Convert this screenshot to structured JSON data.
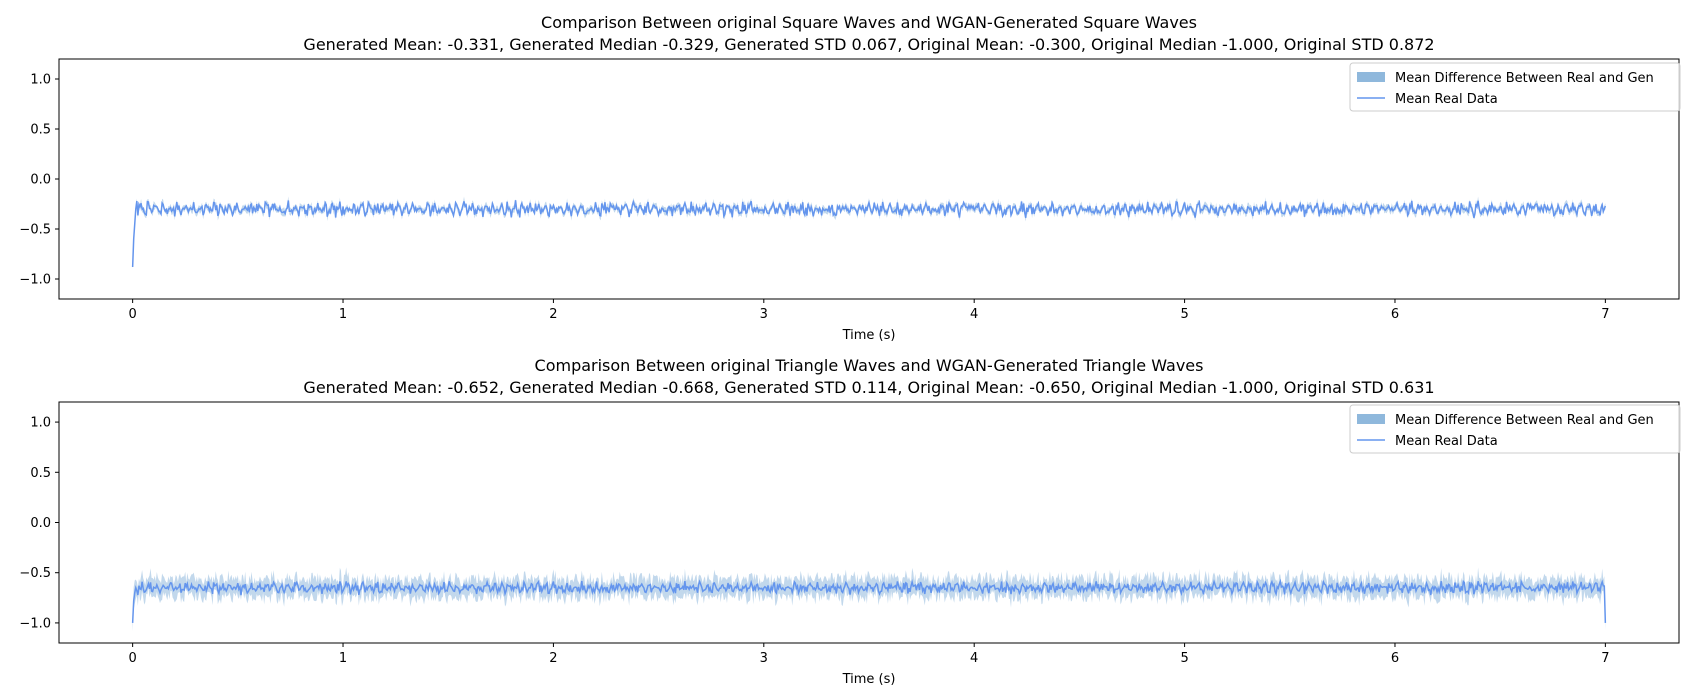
{
  "colors": {
    "line": "#6495ED",
    "band": "#8fb8dc",
    "frame": "#000000",
    "legend_border": "#cccccc"
  },
  "chart_data": [
    {
      "type": "line",
      "title": "Comparison Between original Square Waves and WGAN-Generated Square Waves",
      "subtitle": "Generated Mean: -0.331, Generated Median -0.329, Generated STD 0.067, Original Mean: -0.300, Original Median -1.000, Original STD 0.872",
      "xlabel": "Time (s)",
      "ylabel": "",
      "xlim": [
        -0.35,
        7.35
      ],
      "ylim": [
        -1.2,
        1.2
      ],
      "xticks": [
        0,
        1,
        2,
        3,
        4,
        5,
        6,
        7
      ],
      "yticks": [
        -1.0,
        -0.5,
        0.0,
        0.5,
        1.0
      ],
      "xtick_labels": [
        "0",
        "1",
        "2",
        "3",
        "4",
        "5",
        "6",
        "7"
      ],
      "ytick_labels": [
        "−1.0",
        "−0.5",
        "0.0",
        "0.5",
        "1.0"
      ],
      "legend": {
        "placement": "top-right",
        "entries": [
          "Mean Difference Between Real and Gen",
          "Mean Real Data"
        ]
      },
      "grid": false,
      "series": [
        {
          "name": "Mean Real Data",
          "kind": "line",
          "x_range": [
            0,
            7
          ],
          "start_values": [
            -0.88,
            -0.6,
            -0.45,
            -0.3,
            -0.22
          ],
          "level": -0.3,
          "noise_amplitude": 0.06,
          "end_value": -0.27
        },
        {
          "name": "Mean Difference Between Real and Gen",
          "kind": "band",
          "band_halfwidth": 0.04
        }
      ]
    },
    {
      "type": "line",
      "title": "Comparison Between original Triangle Waves and WGAN-Generated Triangle Waves",
      "subtitle": "Generated Mean: -0.652, Generated Median -0.668, Generated STD 0.114, Original Mean: -0.650, Original Median -1.000, Original STD 0.631",
      "xlabel": "Time (s)",
      "ylabel": "",
      "xlim": [
        -0.35,
        7.35
      ],
      "ylim": [
        -1.2,
        1.2
      ],
      "xticks": [
        0,
        1,
        2,
        3,
        4,
        5,
        6,
        7
      ],
      "yticks": [
        -1.0,
        -0.5,
        0.0,
        0.5,
        1.0
      ],
      "xtick_labels": [
        "0",
        "1",
        "2",
        "3",
        "4",
        "5",
        "6",
        "7"
      ],
      "ytick_labels": [
        "−1.0",
        "−0.5",
        "0.0",
        "0.5",
        "1.0"
      ],
      "legend": {
        "placement": "top-right",
        "entries": [
          "Mean Difference Between Real and Gen",
          "Mean Real Data"
        ]
      },
      "grid": false,
      "series": [
        {
          "name": "Mean Real Data",
          "kind": "line",
          "x_range": [
            0,
            7
          ],
          "start_values": [
            -1.0,
            -0.78,
            -0.7,
            -0.65
          ],
          "level": -0.65,
          "noise_amplitude": 0.05,
          "end_value": -1.0
        },
        {
          "name": "Mean Difference Between Real and Gen",
          "kind": "band",
          "band_halfwidth": 0.12
        }
      ]
    }
  ]
}
